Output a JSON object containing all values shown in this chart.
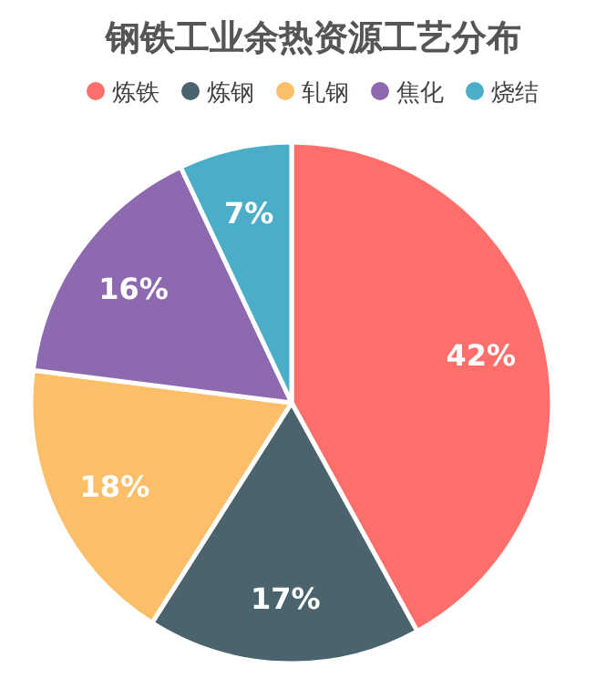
{
  "chart_data": {
    "type": "pie",
    "title": "钢铁工业余热资源工艺分布",
    "categories": [
      "炼铁",
      "炼钢",
      "轧钢",
      "焦化",
      "烧结"
    ],
    "values": [
      42,
      17,
      18,
      16,
      7
    ],
    "colors": [
      "#fe6f6c",
      "#4a636d",
      "#fdbe69",
      "#8d6ab0",
      "#4aaec9"
    ],
    "value_labels": [
      "42%",
      "17%",
      "18%",
      "16%",
      "7%"
    ],
    "legend": "top"
  }
}
